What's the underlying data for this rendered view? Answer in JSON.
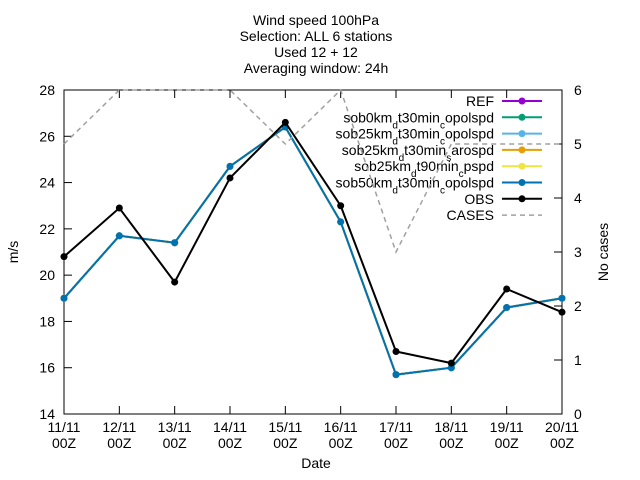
{
  "chart_data": {
    "type": "line",
    "title": [
      "Wind speed 100hPa",
      "Selection: ALL      6 stations",
      "Used 12 + 12",
      "Averaging window: 24h"
    ],
    "xlabel": "Date",
    "ylabel": "m/s",
    "y2label": "No cases",
    "categories": [
      "11/11 00Z",
      "12/11 00Z",
      "13/11 00Z",
      "14/11 00Z",
      "15/11 00Z",
      "16/11 00Z",
      "17/11 00Z",
      "18/11 00Z",
      "19/11 00Z",
      "20/11 00Z"
    ],
    "ylim": [
      14,
      28
    ],
    "yticks": [
      14,
      16,
      18,
      20,
      22,
      24,
      26,
      28
    ],
    "y2lim": [
      0,
      6
    ],
    "y2ticks": [
      0,
      1,
      2,
      3,
      4,
      5,
      6
    ],
    "legend": "top-right",
    "series": [
      {
        "name": "REF",
        "color": "#9400d3",
        "values": [
          19.0,
          21.7,
          21.4,
          24.7,
          26.4,
          22.3,
          15.7,
          16.0,
          18.6,
          19.0
        ]
      },
      {
        "name": "sob0km_dt30min_copolspd",
        "color": "#009e73",
        "values": [
          19.0,
          21.7,
          21.4,
          24.7,
          26.4,
          22.3,
          15.7,
          16.0,
          18.6,
          19.0
        ]
      },
      {
        "name": "sob25km_dt30min_copolspd",
        "color": "#56b4e9",
        "values": [
          19.0,
          21.7,
          21.4,
          24.7,
          26.4,
          22.3,
          15.7,
          16.0,
          18.6,
          19.0
        ]
      },
      {
        "name": "sob25km_dt30min_sarospd",
        "color": "#e69f00",
        "values": [
          19.0,
          21.7,
          21.4,
          24.7,
          26.4,
          22.3,
          15.7,
          16.0,
          18.6,
          19.0
        ]
      },
      {
        "name": "sob25km_dt90min_cpspd",
        "color": "#f0e442",
        "values": [
          19.0,
          21.7,
          21.4,
          24.7,
          26.4,
          22.3,
          15.7,
          16.0,
          18.6,
          19.0
        ]
      },
      {
        "name": "sob50km_dt30min_copolspd",
        "color": "#0072b2",
        "values": [
          19.0,
          21.7,
          21.4,
          24.7,
          26.4,
          22.3,
          15.7,
          16.0,
          18.6,
          19.0
        ]
      },
      {
        "name": "OBS",
        "color": "#000000",
        "values": [
          20.8,
          22.9,
          19.7,
          24.2,
          26.6,
          23.0,
          16.7,
          16.2,
          19.4,
          18.4
        ]
      },
      {
        "name": "CASES",
        "color": "#a0a0a0",
        "dashed": true,
        "axis": "y2",
        "values": [
          5,
          6,
          6,
          6,
          5,
          6,
          3,
          5,
          5,
          5
        ]
      }
    ]
  }
}
